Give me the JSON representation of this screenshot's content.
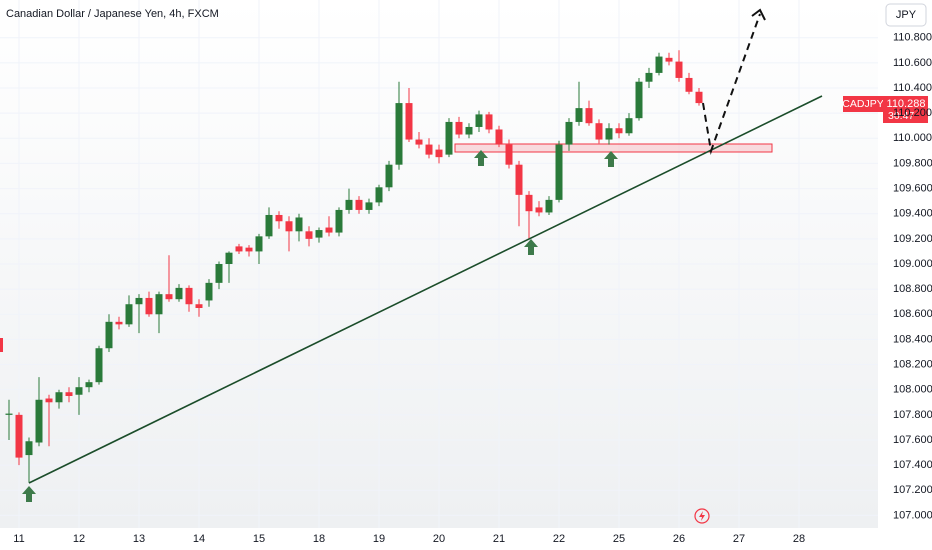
{
  "chart_data": {
    "type": "candlestick",
    "title": "Canadian Dollar / Japanese Yen, 4h, FXCM",
    "currency": "JPY",
    "symbol": "CADJPY",
    "last_price": 110.288,
    "countdown": "30:47",
    "up_color": "#2a7a3a",
    "down_color": "#f23645",
    "ylim": [
      106.9,
      111.1
    ],
    "yticks": [
      {
        "value": 107.0,
        "label": "107.000"
      },
      {
        "value": 107.2,
        "label": "107.200"
      },
      {
        "value": 107.4,
        "label": "107.400"
      },
      {
        "value": 107.6,
        "label": "107.600"
      },
      {
        "value": 107.8,
        "label": "107.800"
      },
      {
        "value": 108.0,
        "label": "108.000"
      },
      {
        "value": 108.2,
        "label": "108.200"
      },
      {
        "value": 108.4,
        "label": "108.400"
      },
      {
        "value": 108.6,
        "label": "108.600"
      },
      {
        "value": 108.8,
        "label": "108.800"
      },
      {
        "value": 109.0,
        "label": "109.000"
      },
      {
        "value": 109.2,
        "label": "109.200"
      },
      {
        "value": 109.4,
        "label": "109.400"
      },
      {
        "value": 109.6,
        "label": "109.600"
      },
      {
        "value": 109.8,
        "label": "109.800"
      },
      {
        "value": 110.0,
        "label": "110.000"
      },
      {
        "value": 110.2,
        "label": "110.200"
      },
      {
        "value": 110.4,
        "label": "110.400"
      },
      {
        "value": 110.6,
        "label": "110.600"
      },
      {
        "value": 110.8,
        "label": "110.800"
      }
    ],
    "categories": [
      null,
      "11",
      null,
      null,
      null,
      null,
      null,
      "12",
      null,
      null,
      null,
      null,
      null,
      "13",
      null,
      null,
      null,
      null,
      null,
      "14",
      null,
      null,
      null,
      null,
      null,
      "15",
      null,
      null,
      null,
      null,
      null,
      "18",
      null,
      null,
      null,
      null,
      null,
      "19",
      null,
      null,
      null,
      null,
      null,
      "20",
      null,
      null,
      null,
      null,
      null,
      "21",
      null,
      null,
      null,
      null,
      null,
      "22",
      null,
      null,
      null,
      null,
      null,
      "25",
      null,
      null,
      null,
      null,
      null,
      "26",
      null,
      null,
      null,
      null,
      null,
      "27",
      null,
      null,
      null,
      null,
      null,
      "28",
      null
    ],
    "open": [
      107.8,
      107.8,
      107.48,
      107.58,
      107.93,
      107.9,
      107.98,
      107.96,
      108.02,
      108.06,
      108.33,
      108.54,
      108.52,
      108.68,
      108.73,
      108.6,
      108.76,
      108.72,
      108.81,
      108.68,
      108.71,
      108.85,
      109.0,
      109.14,
      109.13,
      109.1,
      109.22,
      109.39,
      109.34,
      109.26,
      109.26,
      109.21,
      109.29,
      109.25,
      109.43,
      109.51,
      109.43,
      109.49,
      109.61,
      109.79,
      110.28,
      109.99,
      109.95,
      109.91,
      109.87,
      110.13,
      110.03,
      110.09,
      110.19,
      110.07,
      109.95,
      109.79,
      109.55,
      109.45,
      109.41,
      109.51,
      109.95,
      110.13,
      110.24,
      110.12,
      109.99,
      110.08,
      110.04,
      110.16,
      110.45,
      110.52,
      110.64,
      110.61,
      110.48,
      110.37,
      null,
      null,
      null,
      null,
      null,
      null,
      null,
      null,
      null,
      null,
      null
    ],
    "high": [
      107.92,
      107.82,
      107.62,
      108.1,
      107.96,
      108.0,
      108.02,
      108.1,
      108.08,
      108.35,
      108.6,
      108.58,
      108.75,
      108.76,
      108.78,
      108.78,
      109.07,
      108.84,
      108.83,
      108.72,
      108.88,
      109.02,
      109.1,
      109.16,
      109.15,
      109.24,
      109.45,
      109.42,
      109.38,
      109.4,
      109.3,
      109.29,
      109.38,
      109.45,
      109.6,
      109.54,
      109.52,
      109.63,
      109.82,
      110.45,
      110.4,
      110.05,
      110.0,
      109.95,
      110.16,
      110.17,
      110.12,
      110.22,
      110.21,
      110.1,
      109.99,
      109.82,
      109.58,
      109.5,
      109.54,
      109.98,
      110.16,
      110.45,
      110.3,
      110.15,
      110.12,
      110.12,
      110.2,
      110.48,
      110.56,
      110.68,
      110.68,
      110.7,
      110.52,
      110.4,
      null,
      null,
      null,
      null,
      null,
      null,
      null,
      null,
      null,
      null,
      null
    ],
    "low": [
      107.6,
      107.4,
      107.26,
      107.55,
      107.55,
      107.85,
      107.9,
      107.8,
      107.98,
      108.04,
      108.3,
      108.48,
      108.5,
      108.45,
      108.58,
      108.45,
      108.7,
      108.7,
      108.62,
      108.58,
      108.66,
      108.8,
      108.85,
      109.08,
      109.06,
      109.0,
      109.2,
      109.28,
      109.1,
      109.18,
      109.14,
      109.17,
      109.22,
      109.22,
      109.4,
      109.4,
      109.4,
      109.46,
      109.58,
      109.75,
      109.97,
      109.92,
      109.84,
      109.8,
      109.85,
      110.0,
      110.0,
      110.05,
      110.04,
      109.93,
      109.76,
      109.3,
      109.2,
      109.38,
      109.39,
      109.49,
      109.9,
      110.1,
      110.1,
      109.96,
      109.95,
      110.0,
      110.02,
      110.14,
      110.4,
      110.5,
      110.58,
      110.45,
      110.35,
      110.26,
      null,
      null,
      null,
      null,
      null,
      null,
      null,
      null,
      null,
      null,
      null
    ],
    "close": [
      107.81,
      107.46,
      107.59,
      107.92,
      107.9,
      107.98,
      107.95,
      108.02,
      108.06,
      108.33,
      108.54,
      108.52,
      108.68,
      108.73,
      108.6,
      108.76,
      108.72,
      108.81,
      108.68,
      108.65,
      108.85,
      109.0,
      109.09,
      109.1,
      109.1,
      109.22,
      109.39,
      109.34,
      109.26,
      109.37,
      109.2,
      109.27,
      109.25,
      109.43,
      109.51,
      109.43,
      109.49,
      109.61,
      109.79,
      110.28,
      109.99,
      109.95,
      109.87,
      109.85,
      110.13,
      110.03,
      110.09,
      110.19,
      110.07,
      109.95,
      109.79,
      109.55,
      109.42,
      109.41,
      109.51,
      109.95,
      110.13,
      110.24,
      110.12,
      109.99,
      110.08,
      110.04,
      110.16,
      110.45,
      110.52,
      110.65,
      110.61,
      110.48,
      110.37,
      110.28,
      null,
      null,
      null,
      null,
      null,
      null,
      null,
      null,
      null,
      null,
      null
    ]
  }
}
